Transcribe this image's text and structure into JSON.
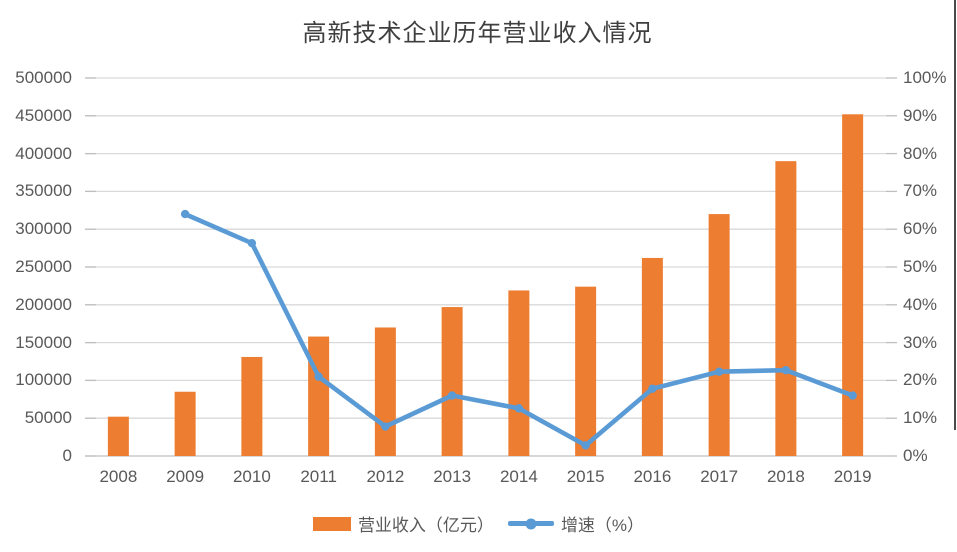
{
  "title": "高新技术企业历年营业收入情况",
  "colors": {
    "bar": "#ED7D31",
    "line": "#5B9BD5",
    "grid": "#D9D9D9",
    "axis": "#BFBFBF",
    "tick": "#BFBFBF",
    "label": "#595959",
    "title_text": "#3f3f3f",
    "window_edge": "#4a4a4a",
    "background": "#ffffff"
  },
  "legend": {
    "items": [
      {
        "label": "营业收入（亿元）",
        "type": "bar"
      },
      {
        "label": "增速（%）",
        "type": "line"
      }
    ]
  },
  "chart_data": {
    "type": "bar",
    "subtype": "combo-bar-line-dual-axis",
    "title": "高新技术企业历年营业收入情况",
    "categories": [
      "2008",
      "2009",
      "2010",
      "2011",
      "2012",
      "2013",
      "2014",
      "2015",
      "2016",
      "2017",
      "2018",
      "2019"
    ],
    "series": [
      {
        "name": "营业收入（亿元）",
        "type": "bar",
        "axis": "left",
        "color": "#ED7D31",
        "values": [
          52000,
          85000,
          131000,
          158000,
          170000,
          197000,
          219000,
          224000,
          262000,
          320000,
          390000,
          452000
        ]
      },
      {
        "name": "增速（%）",
        "type": "line",
        "axis": "right",
        "color": "#5B9BD5",
        "values": [
          null,
          64,
          56.3,
          21,
          7.8,
          16,
          12.6,
          2.8,
          17.8,
          22.3,
          22.7,
          16
        ]
      }
    ],
    "left_axis": {
      "min": 0,
      "max": 500000,
      "step": 50000,
      "ticks": [
        "0",
        "50000",
        "100000",
        "150000",
        "200000",
        "250000",
        "300000",
        "350000",
        "400000",
        "450000",
        "500000"
      ]
    },
    "right_axis": {
      "min": 0,
      "max": 100,
      "step": 10,
      "ticks": [
        "0%",
        "10%",
        "20%",
        "30%",
        "40%",
        "50%",
        "60%",
        "70%",
        "80%",
        "90%",
        "100%"
      ]
    },
    "grid": true,
    "legend_position": "bottom",
    "xlabel": "",
    "ylabel": ""
  }
}
